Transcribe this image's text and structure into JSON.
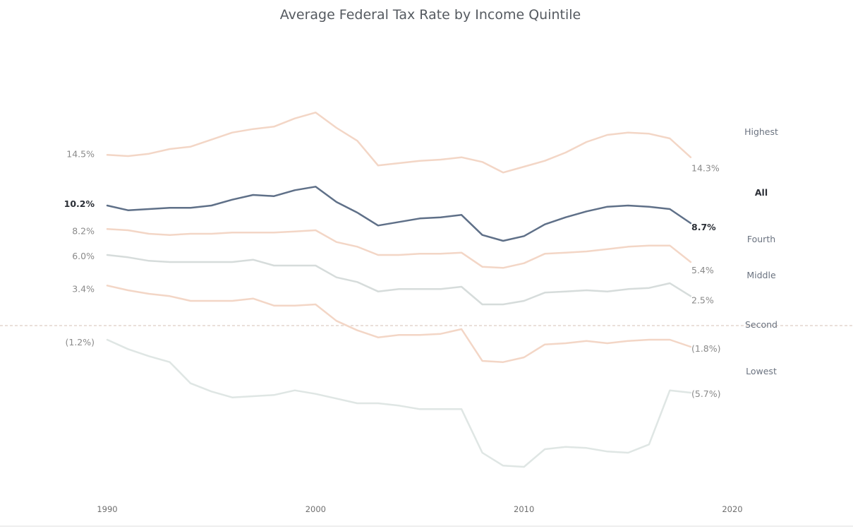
{
  "chart_data": {
    "type": "line",
    "title": "Average Federal Tax Rate by Income Quintile",
    "xlabel": "",
    "ylabel": "",
    "x": [
      1990,
      1991,
      1992,
      1993,
      1994,
      1995,
      1996,
      1997,
      1998,
      1999,
      2000,
      2001,
      2002,
      2003,
      2004,
      2005,
      2006,
      2007,
      2008,
      2009,
      2010,
      2011,
      2012,
      2013,
      2014,
      2015,
      2016,
      2017,
      2018
    ],
    "xlim": [
      1990,
      2020
    ],
    "x_ticks": [
      "1990",
      "2000",
      "2010",
      "2020"
    ],
    "ylim": [
      -13.5,
      22.5
    ],
    "reference_line": 0,
    "grid": false,
    "series": [
      {
        "name": "Highest",
        "color": "#f3d6c6",
        "emphasis": false,
        "start_label": "14.5%",
        "end_label": "14.3%",
        "values": [
          14.5,
          14.4,
          14.6,
          15.0,
          15.2,
          15.8,
          16.4,
          16.7,
          16.9,
          17.6,
          18.1,
          16.8,
          15.7,
          13.6,
          13.8,
          14.0,
          14.1,
          14.3,
          13.9,
          13.0,
          13.5,
          14.0,
          14.7,
          15.6,
          16.2,
          16.4,
          16.3,
          15.9,
          14.3
        ]
      },
      {
        "name": "All",
        "color": "#5f7088",
        "emphasis": true,
        "start_label": "10.2%",
        "end_label": "8.7%",
        "values": [
          10.2,
          9.8,
          9.9,
          10.0,
          10.0,
          10.2,
          10.7,
          11.1,
          11.0,
          11.5,
          11.8,
          10.5,
          9.6,
          8.5,
          8.8,
          9.1,
          9.2,
          9.4,
          7.7,
          7.2,
          7.6,
          8.6,
          9.2,
          9.7,
          10.1,
          10.2,
          10.1,
          9.9,
          8.7
        ]
      },
      {
        "name": "Fourth",
        "color": "#f3d6c6",
        "emphasis": false,
        "start_label": "8.2%",
        "end_label": "5.4%",
        "values": [
          8.2,
          8.1,
          7.8,
          7.7,
          7.8,
          7.8,
          7.9,
          7.9,
          7.9,
          8.0,
          8.1,
          7.1,
          6.7,
          6.0,
          6.0,
          6.1,
          6.1,
          6.2,
          5.0,
          4.9,
          5.3,
          6.1,
          6.2,
          6.3,
          6.5,
          6.7,
          6.8,
          6.8,
          5.4
        ]
      },
      {
        "name": "Middle",
        "color": "#d6dcdb",
        "emphasis": false,
        "start_label": "6.0%",
        "end_label": "2.5%",
        "values": [
          6.0,
          5.8,
          5.5,
          5.4,
          5.4,
          5.4,
          5.4,
          5.6,
          5.1,
          5.1,
          5.1,
          4.1,
          3.7,
          2.9,
          3.1,
          3.1,
          3.1,
          3.3,
          1.8,
          1.8,
          2.1,
          2.8,
          2.9,
          3.0,
          2.9,
          3.1,
          3.2,
          3.6,
          2.5
        ]
      },
      {
        "name": "Second",
        "color": "#f3d6c6",
        "emphasis": false,
        "start_label": "3.4%",
        "end_label": "(1.8%)",
        "values": [
          3.4,
          3.0,
          2.7,
          2.5,
          2.1,
          2.1,
          2.1,
          2.3,
          1.7,
          1.7,
          1.8,
          0.4,
          -0.4,
          -1.0,
          -0.8,
          -0.8,
          -0.7,
          -0.3,
          -3.0,
          -3.1,
          -2.7,
          -1.6,
          -1.5,
          -1.3,
          -1.5,
          -1.3,
          -1.2,
          -1.2,
          -1.8
        ]
      },
      {
        "name": "Lowest",
        "color": "#dfe6e4",
        "emphasis": false,
        "start_label": "(1.2%)",
        "end_label": "(5.7%)",
        "values": [
          -1.2,
          -2.0,
          -2.6,
          -3.1,
          -4.9,
          -5.6,
          -6.1,
          -6.0,
          -5.9,
          -5.5,
          -5.8,
          -6.2,
          -6.6,
          -6.6,
          -6.8,
          -7.1,
          -7.1,
          -7.1,
          -10.8,
          -11.9,
          -12.0,
          -10.5,
          -10.3,
          -10.4,
          -10.7,
          -10.8,
          -10.1,
          -5.5,
          -5.7
        ]
      }
    ]
  }
}
